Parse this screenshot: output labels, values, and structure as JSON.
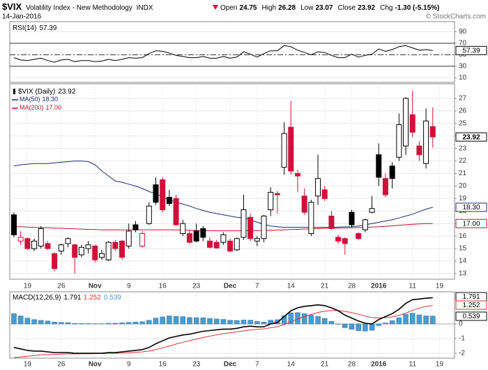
{
  "header": {
    "symbol": "$VIX",
    "name": "Volatility Index - New Methodology",
    "exchange": "INDX",
    "date": "14-Jan-2016",
    "credit": "© StockCharts.com",
    "quote": [
      {
        "label": "Open",
        "value": 24.75
      },
      {
        "label": "High",
        "value": 26.28
      },
      {
        "label": "Low",
        "value": 23.07
      },
      {
        "label": "Close",
        "value": 23.92
      },
      {
        "label": "Chg",
        "value": "-1.30 (-5.15%)"
      }
    ]
  },
  "chart_data": [
    {
      "type": "rsi",
      "ylim": [
        2,
        107.6
      ],
      "yticks": [
        10,
        30,
        50,
        70,
        90
      ],
      "levels": [
        30,
        70
      ],
      "midline": 50,
      "series": [
        {
          "name": "RSI(14)",
          "last_label": "57.39",
          "color": "#000000",
          "values": [
            45,
            41,
            40,
            42,
            44,
            40,
            37,
            41,
            42,
            38,
            40,
            40,
            38,
            39,
            42,
            40,
            42,
            45,
            44,
            45,
            52,
            57,
            56,
            53,
            49,
            47,
            45,
            45,
            47,
            44,
            44,
            47,
            44,
            46,
            55,
            51,
            46,
            52,
            57,
            57,
            66,
            64,
            58,
            54,
            50,
            55,
            54,
            49,
            45,
            45,
            51,
            46,
            49,
            51,
            60,
            56,
            59,
            64,
            66,
            62,
            58,
            59,
            57.39,
            null
          ]
        }
      ]
    },
    {
      "type": "candlestick",
      "categories": [
        null,
        null,
        "19",
        null,
        null,
        null,
        null,
        "26",
        null,
        null,
        null,
        null,
        "Nov",
        null,
        null,
        null,
        null,
        "9",
        null,
        null,
        null,
        null,
        "16",
        null,
        null,
        null,
        null,
        "23",
        null,
        null,
        null,
        null,
        "Dec",
        null,
        null,
        null,
        "7",
        null,
        null,
        null,
        null,
        "14",
        null,
        null,
        null,
        null,
        "21",
        null,
        null,
        null,
        "28",
        null,
        null,
        null,
        "2016",
        null,
        null,
        null,
        null,
        "11",
        null,
        null,
        null,
        "19"
      ],
      "ylim": [
        12.55,
        28.17
      ],
      "yticks": [
        13,
        14,
        15,
        16,
        17,
        18,
        19,
        20,
        21,
        22,
        23,
        24,
        25,
        26,
        27
      ],
      "grid": true,
      "ohlc": {
        "name": "$VIX (Daily)",
        "last_label": "23.92",
        "up_color": "#000000",
        "down_color": "#d0103a",
        "open": [
          17.7,
          15.6,
          15.8,
          15.0,
          15.2,
          15.4,
          14.6,
          14.8,
          15.4,
          15.3,
          14.5,
          15.0,
          15.2,
          14.3,
          14.1,
          15.5,
          15.6,
          15.2,
          16.9,
          15.2,
          17.0,
          20.1,
          20.5,
          19.1,
          19.0,
          16.2,
          16.2,
          16.4,
          16.6,
          15.6,
          15.5,
          15.5,
          15.6,
          14.9,
          15.9,
          17.5,
          15.6,
          15.8,
          18.1,
          19.4,
          21.5,
          24.7,
          21.0,
          19.2,
          16.2,
          19.2,
          19.7,
          17.6,
          15.9,
          15.8,
          17.9,
          16.2,
          16.5,
          17.9,
          22.5,
          20.6,
          21.6,
          22.3,
          23.2,
          25.7,
          23.2,
          21.8,
          24.75,
          null
        ],
        "high": [
          17.9,
          16.4,
          15.9,
          15.8,
          16.8,
          15.6,
          14.7,
          15.4,
          15.9,
          15.4,
          15.3,
          15.6,
          15.3,
          14.9,
          15.6,
          15.7,
          15.7,
          17.0,
          17.2,
          16.4,
          18.7,
          20.7,
          20.7,
          19.7,
          19.3,
          17.3,
          16.5,
          17.0,
          16.8,
          15.9,
          15.7,
          16.3,
          15.8,
          15.9,
          19.3,
          17.8,
          16.0,
          17.7,
          19.9,
          19.6,
          25.1,
          26.8,
          21.3,
          19.8,
          18.9,
          22.5,
          20.0,
          18.0,
          16.1,
          15.9,
          18.1,
          16.3,
          17.4,
          19.2,
          23.4,
          21.0,
          21.9,
          25.8,
          27.1,
          27.6,
          23.6,
          26.2,
          26.28,
          null
        ],
        "low": [
          15.9,
          15.3,
          14.9,
          14.8,
          15.0,
          14.9,
          13.2,
          14.5,
          15.1,
          13.0,
          14.3,
          14.6,
          13.9,
          14.1,
          14.0,
          14.8,
          14.1,
          15.0,
          16.3,
          15.1,
          16.9,
          18.5,
          17.9,
          18.4,
          16.8,
          16.0,
          15.4,
          15.5,
          15.6,
          15.0,
          15.0,
          15.3,
          14.7,
          14.8,
          15.7,
          15.6,
          15.2,
          15.5,
          17.6,
          17.8,
          20.9,
          20.9,
          19.5,
          17.7,
          16.0,
          18.5,
          18.8,
          16.5,
          15.4,
          14.5,
          16.7,
          15.7,
          16.3,
          17.8,
          20.0,
          19.1,
          19.8,
          22.0,
          22.5,
          23.9,
          22.0,
          21.4,
          23.07,
          null
        ],
        "close": [
          16.1,
          15.9,
          15.0,
          15.6,
          16.6,
          15.0,
          13.4,
          15.3,
          15.8,
          14.3,
          15.1,
          15.3,
          14.1,
          14.6,
          15.5,
          15.0,
          14.3,
          16.4,
          16.5,
          16.2,
          18.4,
          18.7,
          18.1,
          18.6,
          16.9,
          17.0,
          15.5,
          15.6,
          15.9,
          15.1,
          15.05,
          16.1,
          14.8,
          15.8,
          18.1,
          15.8,
          15.8,
          17.6,
          19.5,
          19.3,
          24.2,
          21.2,
          20.8,
          17.9,
          18.7,
          20.6,
          19.0,
          16.6,
          15.6,
          15.4,
          16.9,
          15.8,
          17.3,
          18.2,
          20.7,
          19.3,
          20.6,
          24.9,
          27.0,
          24.3,
          22.5,
          25.2,
          23.92,
          null
        ]
      },
      "series": [
        {
          "name": "MA(50)",
          "last_label": "18.30",
          "color": "#1f2a7a",
          "values": [
            21.6,
            21.7,
            21.75,
            21.8,
            21.8,
            21.8,
            21.85,
            21.9,
            21.95,
            22.0,
            22.0,
            21.95,
            21.7,
            21.2,
            20.8,
            20.4,
            20.3,
            20.15,
            20.0,
            19.8,
            19.55,
            19.4,
            19.1,
            18.9,
            18.7,
            18.55,
            18.4,
            18.2,
            18.05,
            17.9,
            17.8,
            17.7,
            17.6,
            17.5,
            17.45,
            17.3,
            17.1,
            16.95,
            16.8,
            16.75,
            16.7,
            16.7,
            16.7,
            16.7,
            16.7,
            16.7,
            16.7,
            16.7,
            16.72,
            16.74,
            16.75,
            16.8,
            16.9,
            17.0,
            17.1,
            17.2,
            17.3,
            17.45,
            17.6,
            17.75,
            17.95,
            18.15,
            18.3,
            null
          ]
        },
        {
          "name": "MA(200)",
          "last_label": "17.00",
          "color": "#c8102e",
          "values": [
            16.75,
            16.74,
            16.72,
            16.7,
            16.68,
            16.66,
            16.64,
            16.62,
            16.6,
            16.58,
            16.56,
            16.54,
            16.52,
            16.5,
            16.5,
            16.5,
            16.5,
            16.5,
            16.5,
            16.5,
            16.5,
            16.5,
            16.5,
            16.5,
            16.5,
            16.48,
            16.46,
            16.45,
            16.44,
            16.43,
            16.42,
            16.42,
            16.42,
            16.42,
            16.43,
            16.43,
            16.44,
            16.45,
            16.46,
            16.48,
            16.5,
            16.52,
            16.54,
            16.56,
            16.58,
            16.6,
            16.62,
            16.63,
            16.64,
            16.65,
            16.66,
            16.68,
            16.7,
            16.72,
            16.75,
            16.78,
            16.82,
            16.86,
            16.9,
            16.94,
            16.97,
            16.99,
            17.0,
            null
          ]
        }
      ]
    },
    {
      "type": "macd",
      "title": "MACD(12,26,9)",
      "categories": [
        null,
        null,
        "19",
        null,
        null,
        null,
        null,
        "26",
        null,
        null,
        null,
        null,
        "Nov",
        null,
        null,
        null,
        null,
        "9",
        null,
        null,
        null,
        null,
        "16",
        null,
        null,
        null,
        null,
        "23",
        null,
        null,
        null,
        null,
        "Dec",
        null,
        null,
        null,
        "7",
        null,
        null,
        null,
        null,
        "14",
        null,
        null,
        null,
        null,
        "21",
        null,
        null,
        null,
        "28",
        null,
        null,
        null,
        "2016",
        null,
        null,
        null,
        null,
        "11",
        null,
        null,
        null,
        "19"
      ],
      "ylim": [
        -2.33,
        2.19
      ],
      "yticks": [
        -2,
        -1,
        0
      ],
      "series": [
        {
          "last_label": "1.791",
          "color": "#000000",
          "values": [
            -1.6,
            -1.7,
            -1.8,
            -1.85,
            -1.85,
            -1.9,
            -1.95,
            -1.95,
            -1.95,
            -2.0,
            -2.0,
            -2.0,
            -2.0,
            -2.0,
            -1.95,
            -1.95,
            -1.9,
            -1.85,
            -1.8,
            -1.75,
            -1.6,
            -1.35,
            -1.15,
            -0.95,
            -0.85,
            -0.75,
            -0.7,
            -0.6,
            -0.5,
            -0.45,
            -0.4,
            -0.35,
            -0.35,
            -0.3,
            -0.2,
            -0.15,
            -0.2,
            -0.2,
            0.0,
            0.1,
            0.5,
            0.9,
            1.1,
            1.2,
            1.25,
            1.3,
            1.25,
            1.1,
            0.9,
            0.6,
            0.4,
            0.2,
            0.05,
            0.0,
            0.3,
            0.5,
            0.7,
            1.0,
            1.4,
            1.65,
            1.7,
            1.75,
            1.791,
            null
          ]
        },
        {
          "last_label": "1.252",
          "color": "#e0303a",
          "values": [
            -2.3,
            -2.25,
            -2.2,
            -2.15,
            -2.1,
            -2.1,
            -2.08,
            -2.06,
            -2.04,
            -2.04,
            -2.03,
            -2.03,
            -2.02,
            -2.02,
            -2.0,
            -2.0,
            -1.98,
            -1.96,
            -1.93,
            -1.9,
            -1.85,
            -1.75,
            -1.63,
            -1.5,
            -1.37,
            -1.25,
            -1.14,
            -1.03,
            -0.92,
            -0.83,
            -0.74,
            -0.66,
            -0.6,
            -0.54,
            -0.47,
            -0.41,
            -0.37,
            -0.33,
            -0.26,
            -0.19,
            -0.05,
            0.14,
            0.33,
            0.5,
            0.65,
            0.78,
            0.87,
            0.92,
            0.92,
            0.86,
            0.77,
            0.66,
            0.54,
            0.43,
            0.41,
            0.43,
            0.48,
            0.58,
            0.74,
            0.92,
            1.08,
            1.2,
            1.252,
            null
          ]
        },
        {
          "last_label": "0.539",
          "color": "#4a9bd0",
          "values": [
            0.7,
            0.55,
            0.4,
            0.3,
            0.25,
            0.2,
            0.13,
            0.11,
            0.09,
            0.04,
            0.03,
            0.03,
            0.02,
            0.02,
            0.05,
            0.05,
            0.08,
            0.11,
            0.13,
            0.15,
            0.25,
            0.4,
            0.48,
            0.55,
            0.52,
            0.5,
            0.44,
            0.43,
            0.42,
            0.38,
            0.34,
            0.31,
            0.25,
            0.24,
            0.27,
            0.26,
            0.17,
            0.13,
            0.26,
            0.29,
            0.55,
            0.76,
            0.77,
            0.7,
            0.6,
            0.52,
            0.38,
            0.18,
            -0.02,
            -0.26,
            -0.37,
            -0.46,
            -0.49,
            -0.43,
            -0.11,
            0.07,
            0.22,
            0.42,
            0.66,
            0.73,
            0.62,
            0.55,
            0.539,
            null
          ]
        }
      ]
    }
  ]
}
